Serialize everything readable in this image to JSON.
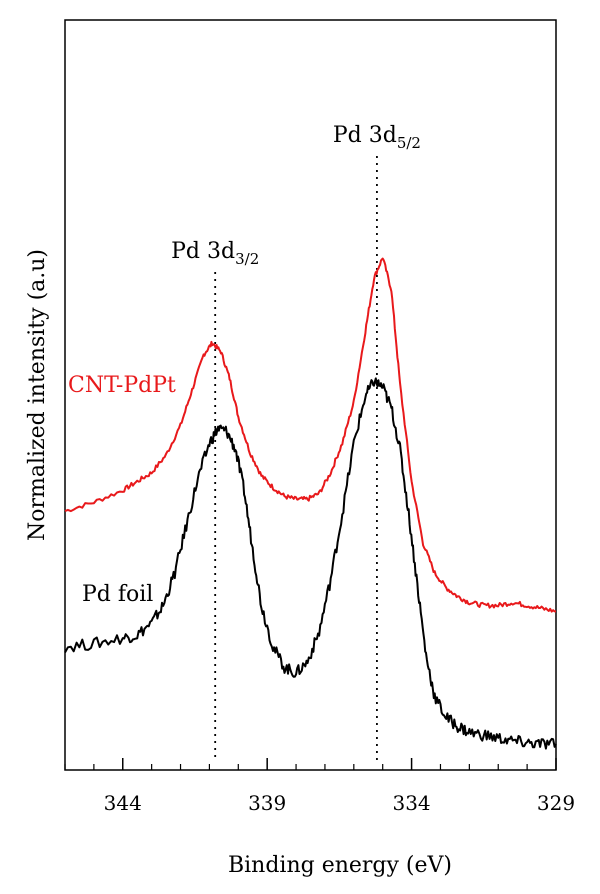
{
  "chart_data": {
    "type": "line",
    "xlabel": "Binding energy (eV)",
    "ylabel": "Normalized intensity (a.u)",
    "xlim": [
      346,
      329
    ],
    "x_reversed": true,
    "ylim": [
      0,
      1
    ],
    "y_ticks_shown": false,
    "grid": false,
    "legend": "none",
    "x_ticks": [
      {
        "value": 344,
        "label": "344"
      },
      {
        "value": 339,
        "label": "339"
      },
      {
        "value": 334,
        "label": "334"
      },
      {
        "value": 329,
        "label": "329"
      }
    ],
    "minor_tick_step": 1,
    "series": [
      {
        "name": "CNT-PdPt",
        "color": "#e8191b",
        "x": [
          346.0,
          345.0,
          344.0,
          343.5,
          343.0,
          342.5,
          342.0,
          341.6,
          341.2,
          340.9,
          340.6,
          340.3,
          340.0,
          339.6,
          339.2,
          338.8,
          338.4,
          338.0,
          337.6,
          337.2,
          336.8,
          336.4,
          336.0,
          335.6,
          335.3,
          335.0,
          334.7,
          334.4,
          334.0,
          333.6,
          333.2,
          332.8,
          332.4,
          332.0,
          331.5,
          331.0,
          330.5,
          330.0,
          329.5,
          329.0
        ],
        "y": [
          0.405,
          0.42,
          0.44,
          0.455,
          0.47,
          0.5,
          0.55,
          0.61,
          0.67,
          0.69,
          0.675,
          0.63,
          0.565,
          0.505,
          0.465,
          0.445,
          0.43,
          0.425,
          0.425,
          0.435,
          0.47,
          0.52,
          0.59,
          0.71,
          0.8,
          0.835,
          0.78,
          0.62,
          0.455,
          0.35,
          0.3,
          0.275,
          0.26,
          0.25,
          0.245,
          0.245,
          0.25,
          0.245,
          0.24,
          0.235
        ]
      },
      {
        "name": "Pd foil",
        "color": "#000000",
        "x": [
          346.0,
          345.0,
          344.0,
          343.5,
          343.0,
          342.6,
          342.2,
          341.8,
          341.4,
          341.0,
          340.7,
          340.4,
          340.1,
          339.8,
          339.5,
          339.2,
          338.8,
          338.4,
          338.0,
          337.6,
          337.2,
          336.8,
          336.4,
          336.0,
          335.6,
          335.3,
          335.0,
          334.7,
          334.4,
          334.1,
          333.8,
          333.5,
          333.2,
          332.8,
          332.4,
          332.0,
          331.5,
          331.0,
          330.5,
          330.0,
          329.5,
          329.0
        ],
        "y": [
          0.175,
          0.18,
          0.19,
          0.195,
          0.215,
          0.245,
          0.3,
          0.38,
          0.46,
          0.52,
          0.545,
          0.54,
          0.51,
          0.44,
          0.34,
          0.245,
          0.175,
          0.14,
          0.13,
          0.15,
          0.2,
          0.29,
          0.4,
          0.52,
          0.6,
          0.625,
          0.615,
          0.58,
          0.51,
          0.4,
          0.28,
          0.16,
          0.09,
          0.055,
          0.04,
          0.03,
          0.025,
          0.02,
          0.015,
          0.012,
          0.01,
          0.01
        ]
      }
    ],
    "annotations": [
      {
        "text": "Pd 3d",
        "sub": "3/2",
        "x": 340.8
      },
      {
        "text": "Pd 3d",
        "sub": "5/2",
        "x": 335.2
      }
    ]
  }
}
